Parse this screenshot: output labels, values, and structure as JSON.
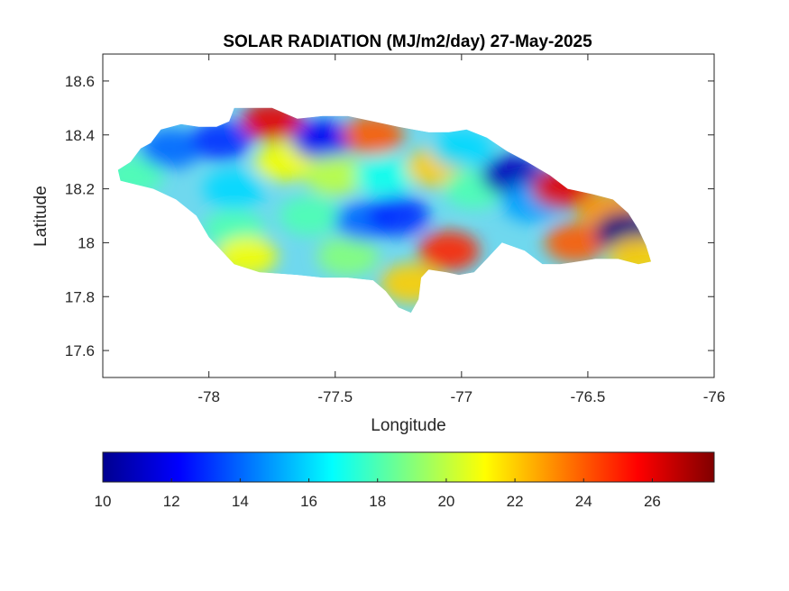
{
  "figure": {
    "title": "SOLAR RADIATION (MJ/m2/day) 27-May-2025",
    "xlabel": "Longitude",
    "ylabel": "Latitude"
  },
  "chart_data": {
    "type": "heatmap",
    "title": "SOLAR RADIATION (MJ/m2/day) 27-May-2025",
    "xlabel": "Longitude",
    "ylabel": "Latitude",
    "xlim": [
      -78.42,
      -76.0
    ],
    "ylim": [
      17.5,
      18.7
    ],
    "x_ticks": [
      -78,
      -77.5,
      -77,
      -76.5,
      -76
    ],
    "x_tick_labels": [
      "-78",
      "-77.5",
      "-77",
      "-76.5",
      "-76"
    ],
    "y_ticks": [
      17.6,
      17.8,
      18,
      18.2,
      18.4,
      18.6
    ],
    "y_tick_labels": [
      "17.6",
      "17.8",
      "18",
      "18.2",
      "18.4",
      "18.6"
    ],
    "grid": false,
    "colormap": "jet",
    "colorbar": {
      "orientation": "horizontal",
      "placement": "below",
      "clim": [
        10,
        27.8
      ],
      "ticks": [
        10,
        12,
        14,
        16,
        18,
        20,
        22,
        24,
        26
      ],
      "tick_labels": [
        "10",
        "12",
        "14",
        "16",
        "18",
        "20",
        "22",
        "24",
        "26"
      ]
    },
    "region_outline": [
      [
        -78.35,
        18.23
      ],
      [
        -78.36,
        18.27
      ],
      [
        -78.31,
        18.3
      ],
      [
        -78.27,
        18.35
      ],
      [
        -78.23,
        18.37
      ],
      [
        -78.19,
        18.42
      ],
      [
        -78.11,
        18.44
      ],
      [
        -78.04,
        18.43
      ],
      [
        -77.97,
        18.43
      ],
      [
        -77.92,
        18.45
      ],
      [
        -77.9,
        18.5
      ],
      [
        -77.75,
        18.5
      ],
      [
        -77.65,
        18.46
      ],
      [
        -77.55,
        18.47
      ],
      [
        -77.45,
        18.47
      ],
      [
        -77.35,
        18.45
      ],
      [
        -77.25,
        18.43
      ],
      [
        -77.13,
        18.41
      ],
      [
        -77.05,
        18.41
      ],
      [
        -76.98,
        18.42
      ],
      [
        -76.9,
        18.39
      ],
      [
        -76.82,
        18.34
      ],
      [
        -76.74,
        18.3
      ],
      [
        -76.65,
        18.25
      ],
      [
        -76.58,
        18.2
      ],
      [
        -76.48,
        18.18
      ],
      [
        -76.4,
        18.16
      ],
      [
        -76.34,
        18.11
      ],
      [
        -76.3,
        18.05
      ],
      [
        -76.27,
        17.99
      ],
      [
        -76.25,
        17.93
      ],
      [
        -76.3,
        17.92
      ],
      [
        -76.38,
        17.94
      ],
      [
        -76.47,
        17.94
      ],
      [
        -76.54,
        17.93
      ],
      [
        -76.61,
        17.92
      ],
      [
        -76.68,
        17.92
      ],
      [
        -76.75,
        17.97
      ],
      [
        -76.84,
        18.0
      ],
      [
        -76.9,
        17.94
      ],
      [
        -76.95,
        17.89
      ],
      [
        -77.01,
        17.88
      ],
      [
        -77.06,
        17.89
      ],
      [
        -77.13,
        17.9
      ],
      [
        -77.16,
        17.87
      ],
      [
        -77.17,
        17.79
      ],
      [
        -77.2,
        17.74
      ],
      [
        -77.25,
        17.76
      ],
      [
        -77.3,
        17.82
      ],
      [
        -77.35,
        17.86
      ],
      [
        -77.45,
        17.87
      ],
      [
        -77.55,
        17.87
      ],
      [
        -77.65,
        17.88
      ],
      [
        -77.8,
        17.89
      ],
      [
        -77.9,
        17.92
      ],
      [
        -77.95,
        17.97
      ],
      [
        -78.0,
        18.02
      ],
      [
        -78.05,
        18.1
      ],
      [
        -78.13,
        18.16
      ],
      [
        -78.22,
        18.2
      ],
      [
        -78.35,
        18.23
      ]
    ],
    "field_samples": [
      {
        "lon": -78.3,
        "lat": 18.25,
        "value": 18
      },
      {
        "lon": -78.15,
        "lat": 18.35,
        "value": 14
      },
      {
        "lon": -77.95,
        "lat": 18.38,
        "value": 13
      },
      {
        "lon": -77.9,
        "lat": 18.2,
        "value": 16
      },
      {
        "lon": -77.9,
        "lat": 18.05,
        "value": 18
      },
      {
        "lon": -77.85,
        "lat": 17.95,
        "value": 21
      },
      {
        "lon": -77.75,
        "lat": 18.45,
        "value": 26
      },
      {
        "lon": -77.7,
        "lat": 18.3,
        "value": 21
      },
      {
        "lon": -77.6,
        "lat": 18.1,
        "value": 18
      },
      {
        "lon": -77.55,
        "lat": 18.38,
        "value": 12
      },
      {
        "lon": -77.5,
        "lat": 18.25,
        "value": 20
      },
      {
        "lon": -77.45,
        "lat": 17.95,
        "value": 19
      },
      {
        "lon": -77.38,
        "lat": 18.08,
        "value": 14
      },
      {
        "lon": -77.35,
        "lat": 18.4,
        "value": 24
      },
      {
        "lon": -77.3,
        "lat": 18.25,
        "value": 17
      },
      {
        "lon": -77.25,
        "lat": 18.1,
        "value": 13
      },
      {
        "lon": -77.2,
        "lat": 17.85,
        "value": 22
      },
      {
        "lon": -77.1,
        "lat": 18.28,
        "value": 22
      },
      {
        "lon": -77.05,
        "lat": 17.97,
        "value": 25
      },
      {
        "lon": -77.0,
        "lat": 18.35,
        "value": 16
      },
      {
        "lon": -76.95,
        "lat": 18.2,
        "value": 18
      },
      {
        "lon": -76.8,
        "lat": 18.25,
        "value": 11
      },
      {
        "lon": -76.72,
        "lat": 18.15,
        "value": 15
      },
      {
        "lon": -76.6,
        "lat": 18.2,
        "value": 26
      },
      {
        "lon": -76.55,
        "lat": 18.0,
        "value": 24
      },
      {
        "lon": -76.42,
        "lat": 18.12,
        "value": 23
      },
      {
        "lon": -76.35,
        "lat": 18.04,
        "value": 10
      },
      {
        "lon": -76.3,
        "lat": 17.95,
        "value": 22
      }
    ]
  }
}
